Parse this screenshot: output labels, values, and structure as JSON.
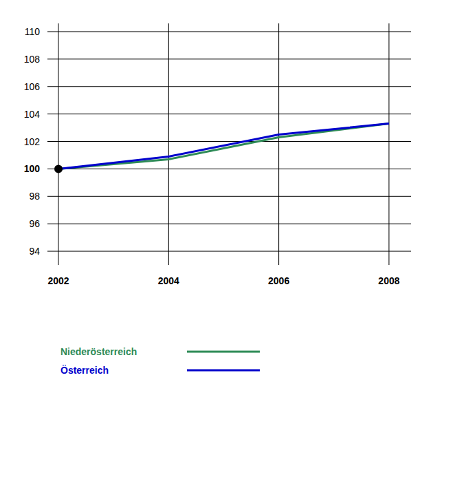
{
  "chart_data": {
    "type": "line",
    "x": [
      2002,
      2004,
      2006,
      2008
    ],
    "series": [
      {
        "name": "Niederösterreich",
        "color": "#2e8b57",
        "values": [
          100,
          100.7,
          102.3,
          103.3
        ]
      },
      {
        "name": "Österreich",
        "color": "#0000cc",
        "values": [
          100,
          100.9,
          102.5,
          103.3
        ]
      }
    ],
    "xlim": [
      2001.8,
      2008.4
    ],
    "xticks": [
      2002,
      2004,
      2006,
      2008
    ],
    "ylim": [
      93,
      110.6
    ],
    "yticks": [
      94,
      96,
      98,
      100,
      102,
      104,
      106,
      108,
      110
    ],
    "grid": true
  }
}
